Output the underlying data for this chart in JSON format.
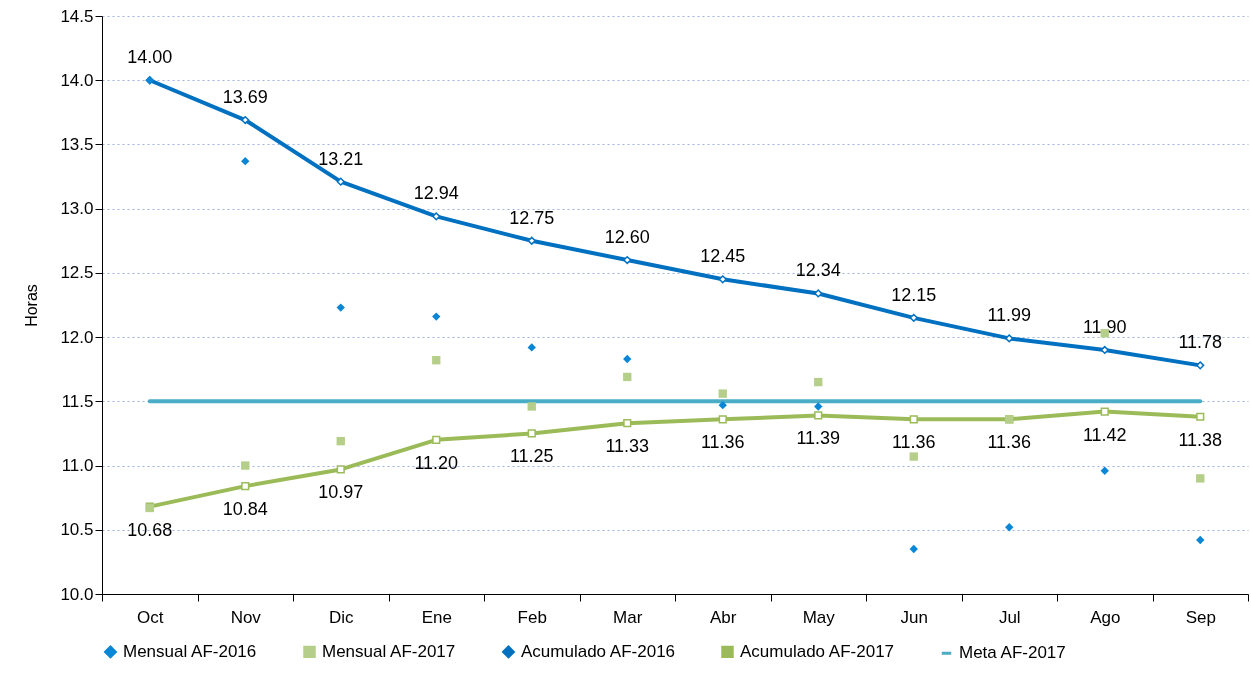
{
  "chart_data": {
    "type": "line",
    "ylabel": "Horas",
    "categories": [
      "Oct",
      "Nov",
      "Dic",
      "Ene",
      "Feb",
      "Mar",
      "Abr",
      "May",
      "Jun",
      "Jul",
      "Ago",
      "Sep"
    ],
    "ylim": [
      10,
      14.5
    ],
    "yticks": [
      {
        "value": 10,
        "label": "10.0"
      },
      10.5,
      {
        "value": 11,
        "label": "11.0"
      },
      11.5,
      {
        "value": 12,
        "label": "12.0"
      },
      12.5,
      {
        "value": 13,
        "label": "13.0"
      },
      13.5,
      {
        "value": 14,
        "label": "14.0"
      },
      14.5
    ],
    "grid": "y",
    "legend": "bottom",
    "series": [
      {
        "name": "Mensual AF-2016",
        "type": "scatter",
        "marker": "diamond",
        "color": "#0a86d6",
        "values": [
          14.0,
          13.37,
          12.23,
          12.16,
          11.92,
          11.83,
          11.47,
          11.46,
          10.35,
          10.52,
          10.96,
          10.42
        ]
      },
      {
        "name": "Mensual AF-2017",
        "type": "scatter",
        "marker": "square",
        "color": "#b5cf8a",
        "values": [
          10.67,
          11.0,
          11.19,
          11.82,
          11.46,
          11.69,
          11.56,
          11.65,
          11.07,
          11.36,
          12.03,
          10.9
        ]
      },
      {
        "name": "Acumulado AF-2016",
        "marker": "diamond",
        "color": "#0070c0",
        "values": [
          14.0,
          13.69,
          13.21,
          12.94,
          12.75,
          12.6,
          12.45,
          12.34,
          12.15,
          11.99,
          11.9,
          11.78
        ],
        "value_labels": [
          "14.00",
          "13.69",
          "13.21",
          "12.94",
          "12.75",
          "12.60",
          "12.45",
          "12.34",
          "12.15",
          "11.99",
          "11.90",
          "11.78"
        ]
      },
      {
        "name": "Acumulado AF-2017",
        "marker": "square",
        "color": "#9bbb59",
        "values": [
          10.68,
          10.84,
          10.97,
          11.2,
          11.25,
          11.33,
          11.36,
          11.39,
          11.36,
          11.36,
          11.42,
          11.38
        ],
        "value_labels": [
          "10.68",
          "10.84",
          "10.97",
          "11.20",
          "11.25",
          "11.33",
          "11.36",
          "11.39",
          "11.36",
          "11.36",
          "11.42",
          "11.38"
        ]
      },
      {
        "name": "Meta AF-2017",
        "marker": "none",
        "color": "#4bacc6",
        "values": [
          11.5,
          11.5,
          11.5,
          11.5,
          11.5,
          11.5,
          11.5,
          11.5,
          11.5,
          11.5,
          11.5,
          11.5
        ]
      }
    ]
  }
}
